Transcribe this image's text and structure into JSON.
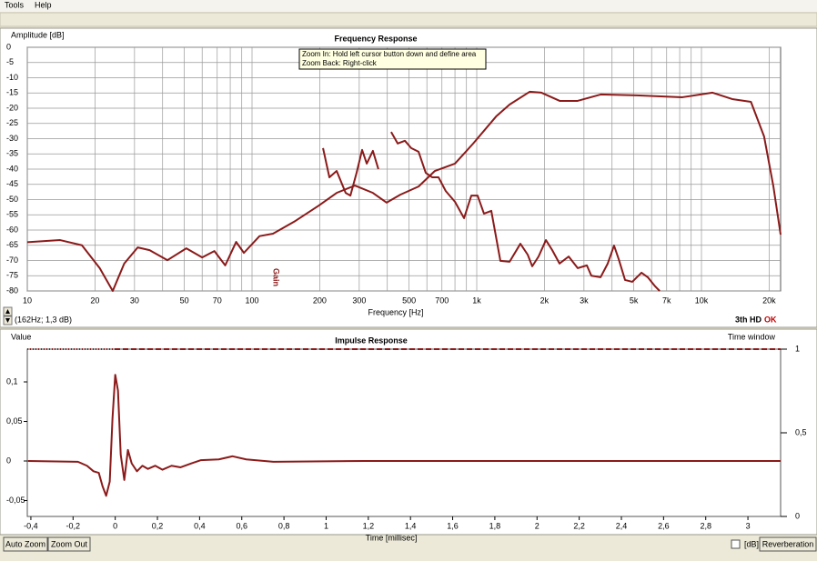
{
  "menu": [
    "Tools",
    "Help"
  ],
  "chart_data": [
    {
      "type": "line",
      "title": "Frequency Response",
      "y_label": "Amplitude [dB]",
      "x_label": "Frequency [Hz]",
      "xscale": "log",
      "xlim": [
        10,
        22500
      ],
      "ylim": [
        -80,
        0
      ],
      "grid": true,
      "xticks": [
        10,
        20,
        30,
        50,
        70,
        100,
        200,
        300,
        500,
        700,
        {
          "value": 1000,
          "label": "1k"
        },
        {
          "value": 2000,
          "label": "2k"
        },
        {
          "value": 3000,
          "label": "3k"
        },
        {
          "value": 5000,
          "label": "5k"
        },
        {
          "value": 7000,
          "label": "7k"
        },
        {
          "value": 10000,
          "label": "10k"
        },
        {
          "value": 20000,
          "label": "20k"
        }
      ],
      "xminor": [
        40,
        60,
        80,
        90,
        400,
        600,
        800,
        900,
        4000,
        6000,
        8000,
        9000
      ],
      "yticks": [
        0,
        -5,
        -10,
        -15,
        -20,
        -25,
        -30,
        -35,
        -40,
        -45,
        -50,
        -55,
        -60,
        -65,
        -70,
        -75,
        -80
      ],
      "series": [
        {
          "color": "#8b1a1a",
          "x": [
            10,
            14,
            17.5,
            21,
            24,
            27,
            31,
            35,
            42,
            51,
            60,
            68,
            76,
            85,
            92,
            108,
            124,
            156,
            198,
            238,
            287,
            345,
            397,
            457,
            551,
            651,
            800,
            964,
            1220,
            1400,
            1720,
            1940,
            2340,
            2810,
            3560,
            5160,
            8220,
            11200,
            13700,
            16600,
            19000,
            20900,
            22500
          ],
          "values": [
            -64,
            -63.3,
            -65,
            -72.5,
            -80,
            -71,
            -65.7,
            -66.6,
            -69.9,
            -66,
            -69,
            -66.9,
            -71.6,
            -63.9,
            -67.5,
            -62,
            -61.2,
            -57,
            -52,
            -47.8,
            -45.4,
            -47.8,
            -51,
            -48.4,
            -45.7,
            -40.6,
            -38.2,
            -31.6,
            -22.7,
            -18.8,
            -14.6,
            -14.9,
            -17.6,
            -17.6,
            -15.5,
            -15.8,
            -16.4,
            -14.9,
            -17,
            -17.9,
            -29.3,
            -45.7,
            -61.5
          ]
        },
        {
          "color": "#8b1a1a",
          "x": [
            207,
            221,
            238,
            261,
            274,
            292,
            309,
            324,
            345,
            365
          ],
          "values": [
            -33.1,
            -42.7,
            -40.6,
            -47.8,
            -48.7,
            -41.2,
            -33.7,
            -38.2,
            -34,
            -40
          ]
        },
        {
          "color": "#8b1a1a",
          "x": [
            416,
            445,
            479,
            511,
            551,
            593,
            634,
            676,
            728,
            800,
            878,
            946,
            1009,
            1077,
            1161,
            1274,
            1400,
            1564,
            1686,
            1766,
            1884,
            2032,
            2168,
            2336,
            2565,
            2814,
            3090,
            3236,
            3556,
            3828,
            4083,
            4285,
            4571,
            4921,
            5408,
            5768,
            6223,
            6516
          ],
          "values": [
            -27.8,
            -31.6,
            -30.7,
            -33.1,
            -34.3,
            -41.2,
            -42.7,
            -42.7,
            -47.2,
            -50.7,
            -56.1,
            -48.7,
            -48.7,
            -54.6,
            -53.7,
            -70.1,
            -70.4,
            -64.5,
            -68.1,
            -71.9,
            -68.7,
            -63.3,
            -66.6,
            -71,
            -68.7,
            -72.5,
            -71.6,
            -75,
            -75.5,
            -71,
            -65.1,
            -69.6,
            -76.4,
            -77,
            -74,
            -75.5,
            -78.5,
            -80
          ]
        }
      ],
      "tooltip": [
        "Zoom In:   Hold left cursor button down and define area",
        "Zoom Back: Right-click"
      ],
      "cursor_readout": "(162Hz; 1,3 dB)",
      "marker": "Gain",
      "status": "3th HD",
      "status_ok": "OK"
    },
    {
      "type": "line",
      "title": "Impulse Response",
      "y_label": "Value",
      "y2_label": "Time window",
      "x_label": "Time [millisec]",
      "xscale": "linear",
      "xlim": [
        -0.417,
        3.155
      ],
      "ylim": [
        -0.0701,
        0.1414
      ],
      "y2lim": [
        0,
        1
      ],
      "grid": false,
      "xticks": [
        {
          "value": -0.4,
          "label": "-0,4"
        },
        {
          "value": -0.2,
          "label": "-0,2"
        },
        0,
        {
          "value": 0.2,
          "label": "0,2"
        },
        {
          "value": 0.4,
          "label": "0,4"
        },
        {
          "value": 0.6,
          "label": "0,6"
        },
        {
          "value": 0.8,
          "label": "0,8"
        },
        1,
        {
          "value": 1.2,
          "label": "1,2"
        },
        {
          "value": 1.4,
          "label": "1,4"
        },
        {
          "value": 1.6,
          "label": "1,6"
        },
        {
          "value": 1.8,
          "label": "1,8"
        },
        2,
        {
          "value": 2.2,
          "label": "2,2"
        },
        {
          "value": 2.4,
          "label": "2,4"
        },
        {
          "value": 2.6,
          "label": "2,6"
        },
        {
          "value": 2.8,
          "label": "2,8"
        },
        3
      ],
      "yticks": [
        {
          "value": 0.1,
          "label": "0,1"
        },
        {
          "value": 0.05,
          "label": "0,05"
        },
        0,
        {
          "value": -0.05,
          "label": "-0,05"
        }
      ],
      "y2ticks": [
        0,
        {
          "value": 0.5,
          "label": "0,5"
        },
        1
      ],
      "series": [
        {
          "color": "#8b1a1a",
          "x": [
            -0.414,
            -0.177,
            -0.134,
            -0.103,
            -0.078,
            -0.06,
            -0.043,
            -0.026,
            -0.013,
            0,
            0.013,
            0.026,
            0.043,
            0.06,
            0.078,
            0.103,
            0.129,
            0.155,
            0.19,
            0.224,
            0.267,
            0.31,
            0.362,
            0.405,
            0.491,
            0.556,
            0.621,
            0.75,
            1.181,
            3.155
          ],
          "values": [
            0,
            -0.001,
            -0.006,
            -0.013,
            -0.015,
            -0.032,
            -0.044,
            -0.026,
            0.054,
            0.109,
            0.089,
            0.008,
            -0.024,
            0.014,
            -0.003,
            -0.013,
            -0.006,
            -0.01,
            -0.006,
            -0.011,
            -0.006,
            -0.008,
            -0.003,
            0.001,
            0.002,
            0.006,
            0.002,
            -0.001,
            0,
            0
          ]
        }
      ]
    }
  ],
  "buttons": [
    "Auto Zoom",
    "Zoom Out"
  ],
  "checkbox_label": "[dB]",
  "reverberation_button": "Reverberation"
}
